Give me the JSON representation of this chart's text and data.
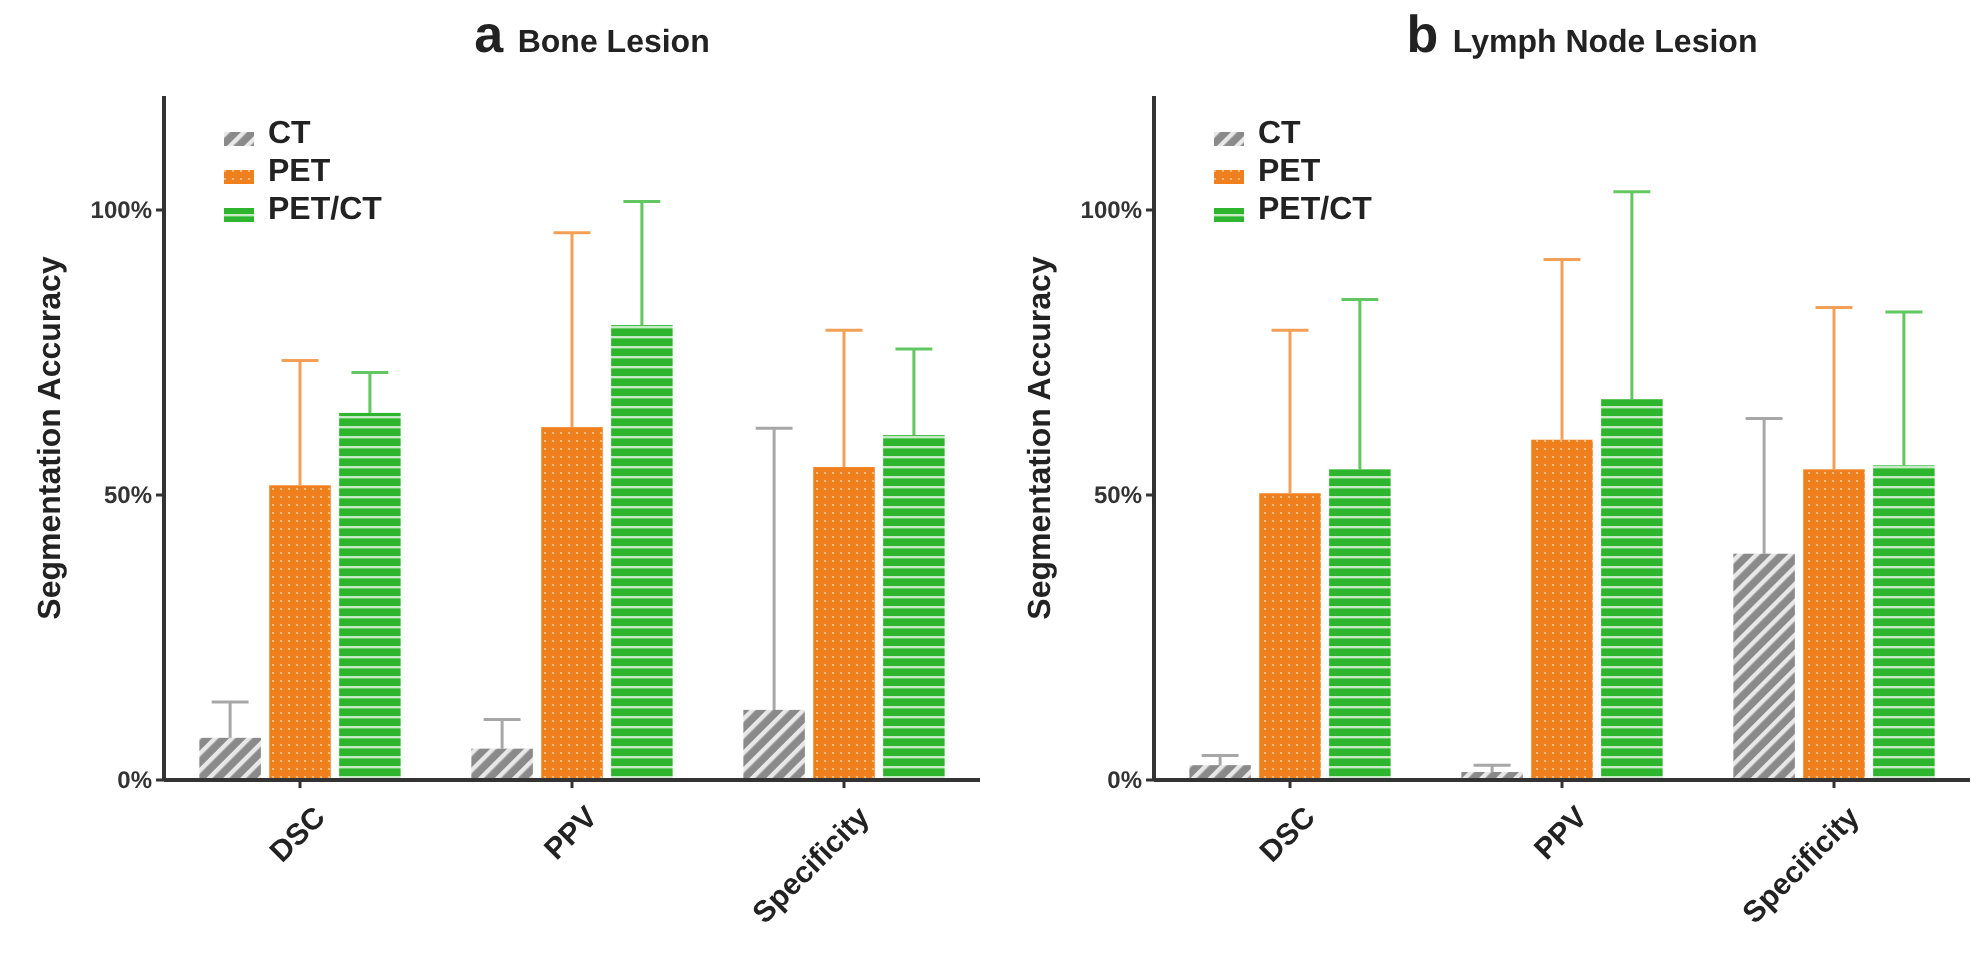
{
  "chart_data": [
    {
      "type": "bar",
      "title": "Bone Lesion",
      "annotations": [
        "a"
      ],
      "ylabel": "Segmentation Accuracy",
      "categories": [
        "DSC",
        "PPV",
        "Specificity"
      ],
      "ylim": [
        0,
        120
      ],
      "yticks": [
        {
          "value": 0,
          "label": "0%"
        },
        {
          "value": 50,
          "label": "50%"
        },
        {
          "value": 100,
          "label": "100%"
        }
      ],
      "legend": "top left",
      "grid": false,
      "series": [
        {
          "name": "CT",
          "color": "#8a8a8a",
          "values": [
            7.4,
            5.5,
            12.3
          ],
          "errors": [
            [
              7.4,
              13.7
            ],
            [
              5.5,
              10.6
            ],
            [
              12.3,
              61.7
            ]
          ]
        },
        {
          "name": "PET",
          "color": "#f07f1e",
          "values": [
            51.7,
            61.9,
            54.9
          ],
          "errors": [
            [
              51.7,
              73.6
            ],
            [
              61.9,
              96.0
            ],
            [
              54.9,
              78.9
            ]
          ]
        },
        {
          "name": "PET/CT",
          "color": "#2db52d",
          "values": [
            64.4,
            79.8,
            60.5
          ],
          "errors": [
            [
              64.4,
              71.5
            ],
            [
              79.8,
              101.5
            ],
            [
              60.5,
              75.6
            ]
          ]
        }
      ]
    },
    {
      "type": "bar",
      "title": "Lymph Node Lesion",
      "annotations": [
        "b"
      ],
      "ylabel": "Segmentation Accuracy",
      "categories": [
        "DSC",
        "PPV",
        "Specificity"
      ],
      "ylim": [
        0,
        120
      ],
      "yticks": [
        {
          "value": 0,
          "label": "0%"
        },
        {
          "value": 50,
          "label": "50%"
        },
        {
          "value": 100,
          "label": "100%"
        }
      ],
      "legend": "top left",
      "grid": false,
      "series": [
        {
          "name": "CT",
          "color": "#8a8a8a",
          "values": [
            2.6,
            1.4,
            39.7
          ],
          "errors": [
            [
              2.6,
              4.3
            ],
            [
              1.4,
              2.6
            ],
            [
              39.7,
              63.4
            ]
          ]
        },
        {
          "name": "PET",
          "color": "#f07f1e",
          "values": [
            50.3,
            59.7,
            54.5
          ],
          "errors": [
            [
              50.3,
              78.9
            ],
            [
              59.7,
              91.3
            ],
            [
              54.5,
              82.9
            ]
          ]
        },
        {
          "name": "PET/CT",
          "color": "#2db52d",
          "values": [
            54.5,
            66.8,
            55.2
          ],
          "errors": [
            [
              54.5,
              84.3
            ],
            [
              66.8,
              103.2
            ],
            [
              55.2,
              82.1
            ]
          ]
        }
      ]
    }
  ]
}
